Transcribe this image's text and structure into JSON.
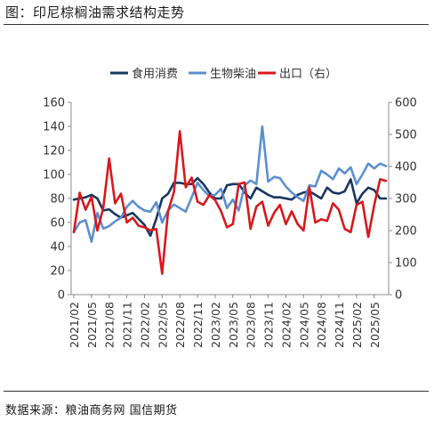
{
  "figure": {
    "title": "图：印尼棕榈油需求结构走势",
    "source": "数据来源：粮油商务网 国信期货"
  },
  "chart_data": {
    "type": "line",
    "title": "",
    "xlabel": "",
    "ylabel": "",
    "legend_position": "top",
    "grid": false,
    "ylim_left": [
      0,
      160
    ],
    "ylim_right": [
      0,
      600
    ],
    "yticks_left": [
      "0",
      "20",
      "40",
      "60",
      "80",
      "100",
      "120",
      "140",
      "160"
    ],
    "yticks_right": [
      "0",
      "100",
      "200",
      "300",
      "400",
      "500",
      "600"
    ],
    "x_tick_labels": [
      "2021/02",
      "2021/05",
      "2021/08",
      "2021/11",
      "2022/02",
      "2022/05",
      "2022/08",
      "2022/11",
      "2023/02",
      "2023/05",
      "2023/08",
      "2023/11",
      "2024/02",
      "2024/05",
      "2024/08",
      "2024/11",
      "2025/02",
      "2025/05"
    ],
    "x": [
      "2021/02",
      "2021/03",
      "2021/04",
      "2021/05",
      "2021/06",
      "2021/07",
      "2021/08",
      "2021/09",
      "2021/10",
      "2021/11",
      "2021/12",
      "2022/01",
      "2022/02",
      "2022/03",
      "2022/04",
      "2022/05",
      "2022/06",
      "2022/07",
      "2022/08",
      "2022/09",
      "2022/10",
      "2022/11",
      "2022/12",
      "2023/01",
      "2023/02",
      "2023/03",
      "2023/04",
      "2023/05",
      "2023/06",
      "2023/07",
      "2023/08",
      "2023/09",
      "2023/10",
      "2023/11",
      "2023/12",
      "2024/01",
      "2024/02",
      "2024/03",
      "2024/04",
      "2024/05",
      "2024/06",
      "2024/07",
      "2024/08",
      "2024/09",
      "2024/10",
      "2024/11",
      "2024/12",
      "2025/01",
      "2025/02",
      "2025/03",
      "2025/04",
      "2025/05",
      "2025/06",
      "2025/07"
    ],
    "series": [
      {
        "name": "食用消费",
        "axis": "left",
        "color": "#17375e",
        "values": [
          79,
          80,
          81,
          83,
          80,
          70,
          71,
          67,
          64,
          66,
          68,
          63,
          58,
          49,
          63,
          80,
          84,
          93,
          93,
          92,
          92,
          97,
          92,
          85,
          80,
          80,
          91,
          92,
          92,
          85,
          80,
          89,
          86,
          83,
          81,
          81,
          80,
          79,
          83,
          85,
          86,
          83,
          80,
          89,
          85,
          84,
          86,
          96,
          76,
          84,
          89,
          87,
          80,
          80
        ]
      },
      {
        "name": "生物柴油",
        "axis": "left",
        "color": "#5b8fd0",
        "values": [
          52,
          60,
          62,
          44,
          68,
          55,
          57,
          61,
          64,
          73,
          78,
          73,
          70,
          69,
          77,
          60,
          70,
          75,
          72,
          69,
          81,
          93,
          87,
          82,
          83,
          88,
          72,
          79,
          70,
          91,
          95,
          92,
          140,
          94,
          98,
          97,
          90,
          85,
          81,
          78,
          91,
          90,
          103,
          100,
          96,
          105,
          101,
          106,
          92,
          100,
          109,
          105,
          109,
          107
        ]
      },
      {
        "name": "出口（右）",
        "axis": "right",
        "color": "#d7191c",
        "values": [
          195,
          318,
          265,
          305,
          200,
          270,
          425,
          285,
          315,
          225,
          240,
          215,
          210,
          200,
          205,
          65,
          260,
          320,
          510,
          335,
          365,
          290,
          280,
          310,
          295,
          260,
          210,
          220,
          345,
          350,
          205,
          275,
          290,
          215,
          255,
          280,
          220,
          260,
          220,
          200,
          335,
          225,
          235,
          230,
          285,
          265,
          205,
          195,
          280,
          290,
          180,
          280,
          360,
          355
        ]
      }
    ]
  }
}
